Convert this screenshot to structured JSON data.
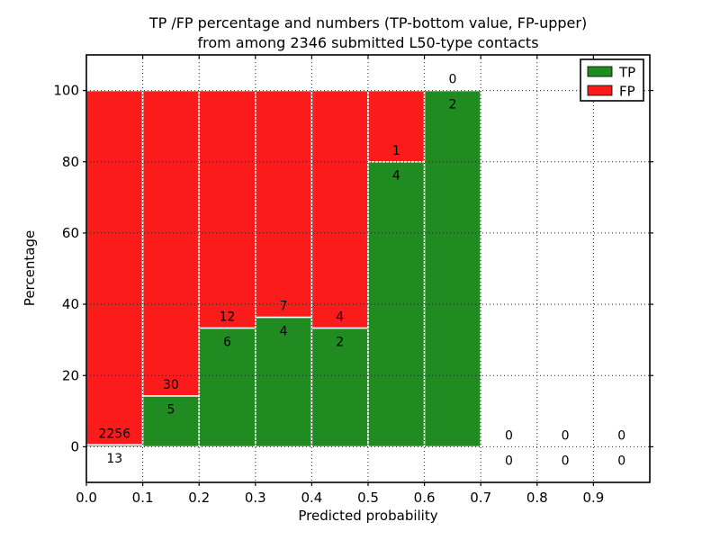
{
  "figure": {
    "background": "#ffffff"
  },
  "chart_data": {
    "type": "bar",
    "stacked": true,
    "normalized": "percent_per_bin",
    "title_lines": [
      "TP /FP percentage and numbers (TP-bottom value, FP-upper)",
      "from among 2346 submitted L50-type contacts"
    ],
    "total_submitted": 2346,
    "xlabel": "Predicted probability",
    "ylabel": "Percentage",
    "xlim": [
      0.0,
      1.0
    ],
    "ylim": [
      -10,
      110
    ],
    "bin_width": 0.1,
    "grid": "dotted",
    "xticks": {
      "values": [
        0.0,
        0.1,
        0.2,
        0.3,
        0.4,
        0.5,
        0.6,
        0.7,
        0.8,
        0.9
      ],
      "labels": [
        "0.0",
        "0.1",
        "0.2",
        "0.3",
        "0.4",
        "0.5",
        "0.6",
        "0.7",
        "0.8",
        "0.9"
      ]
    },
    "yticks": {
      "values": [
        0,
        20,
        40,
        60,
        80,
        100
      ],
      "labels": [
        "0",
        "20",
        "40",
        "60",
        "80",
        "100"
      ]
    },
    "series": [
      {
        "name": "TP",
        "color": "#208B20",
        "position": "bottom",
        "values": [
          13,
          5,
          6,
          4,
          2,
          4,
          2,
          0,
          0,
          0
        ]
      },
      {
        "name": "FP",
        "color": "#FB1B1B",
        "position": "upper",
        "values": [
          2256,
          30,
          12,
          7,
          4,
          1,
          0,
          0,
          0,
          0
        ]
      }
    ],
    "tp_percent_by_bin": [
      0.57,
      14.29,
      33.33,
      36.36,
      33.33,
      80.0,
      100.0,
      0,
      0,
      0
    ],
    "legend": {
      "position": "upper right",
      "entries": [
        "TP",
        "FP"
      ]
    }
  }
}
